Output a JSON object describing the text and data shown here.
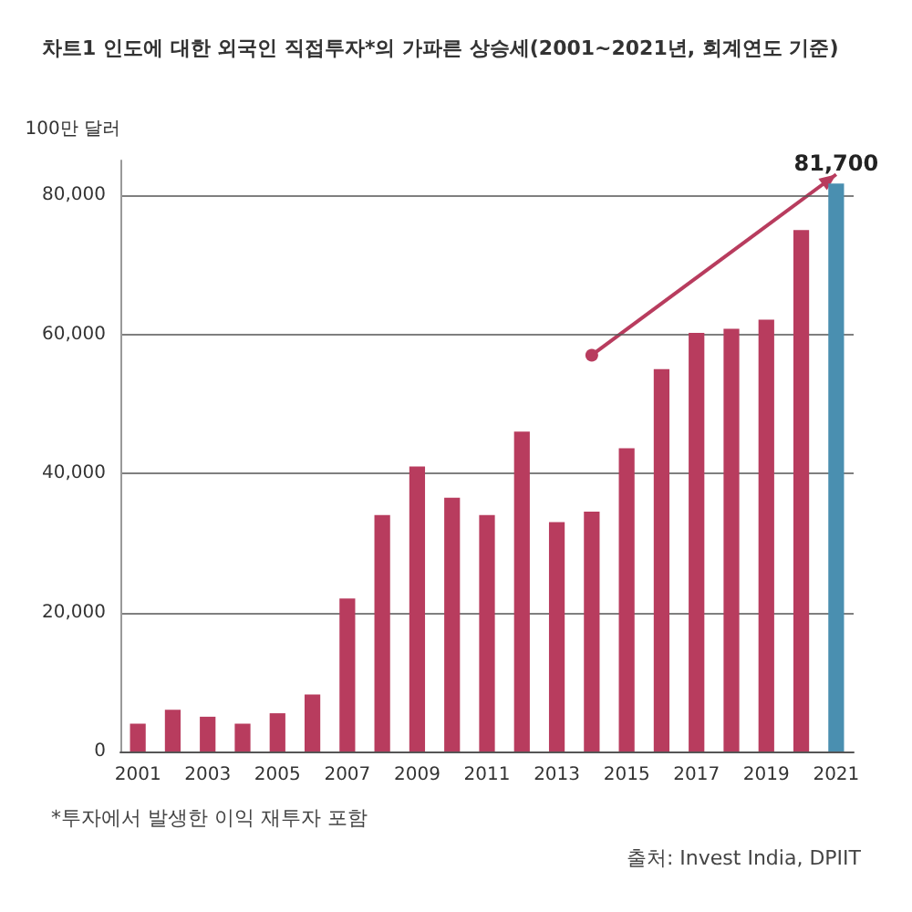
{
  "chart_data": {
    "type": "bar",
    "title": "차트1 인도에 대한 외국인 직접투자*의 가파른 상승세(2001~2021년, 회계연도 기준)",
    "ylabel": "100만 달러",
    "categories": [
      "2001",
      null,
      "2003",
      null,
      "2005",
      null,
      "2007",
      null,
      "2009",
      null,
      "2011",
      null,
      "2013",
      null,
      "2015",
      null,
      "2017",
      null,
      "2019",
      null,
      "2021"
    ],
    "values": [
      4000,
      6000,
      5000,
      4000,
      5500,
      8200,
      22000,
      34000,
      41000,
      36500,
      34000,
      46000,
      33000,
      34500,
      43600,
      55000,
      60200,
      60800,
      62100,
      75000,
      81700
    ],
    "colors": [
      "#b83c5e",
      "#b83c5e",
      "#b83c5e",
      "#b83c5e",
      "#b83c5e",
      "#b83c5e",
      "#b83c5e",
      "#b83c5e",
      "#b83c5e",
      "#b83c5e",
      "#b83c5e",
      "#b83c5e",
      "#b83c5e",
      "#b83c5e",
      "#b83c5e",
      "#b83c5e",
      "#b83c5e",
      "#b83c5e",
      "#b83c5e",
      "#b83c5e",
      "#4a8fb0"
    ],
    "value_labels": [
      null,
      null,
      null,
      null,
      null,
      null,
      null,
      null,
      null,
      null,
      null,
      null,
      null,
      null,
      null,
      null,
      null,
      null,
      null,
      null,
      "81,700"
    ],
    "ylim": [
      0,
      85000
    ],
    "yticks": [
      0,
      {
        "value": 20000,
        "label": "20,000"
      },
      {
        "value": 40000,
        "label": "40,000"
      },
      {
        "value": 60000,
        "label": "60,000"
      },
      {
        "value": 80000,
        "label": "80,000"
      }
    ],
    "grid": "y",
    "annotations": [
      "*투자에서 발생한 이익 재투자 포함",
      "출처: Invest India, DPIIT"
    ]
  }
}
